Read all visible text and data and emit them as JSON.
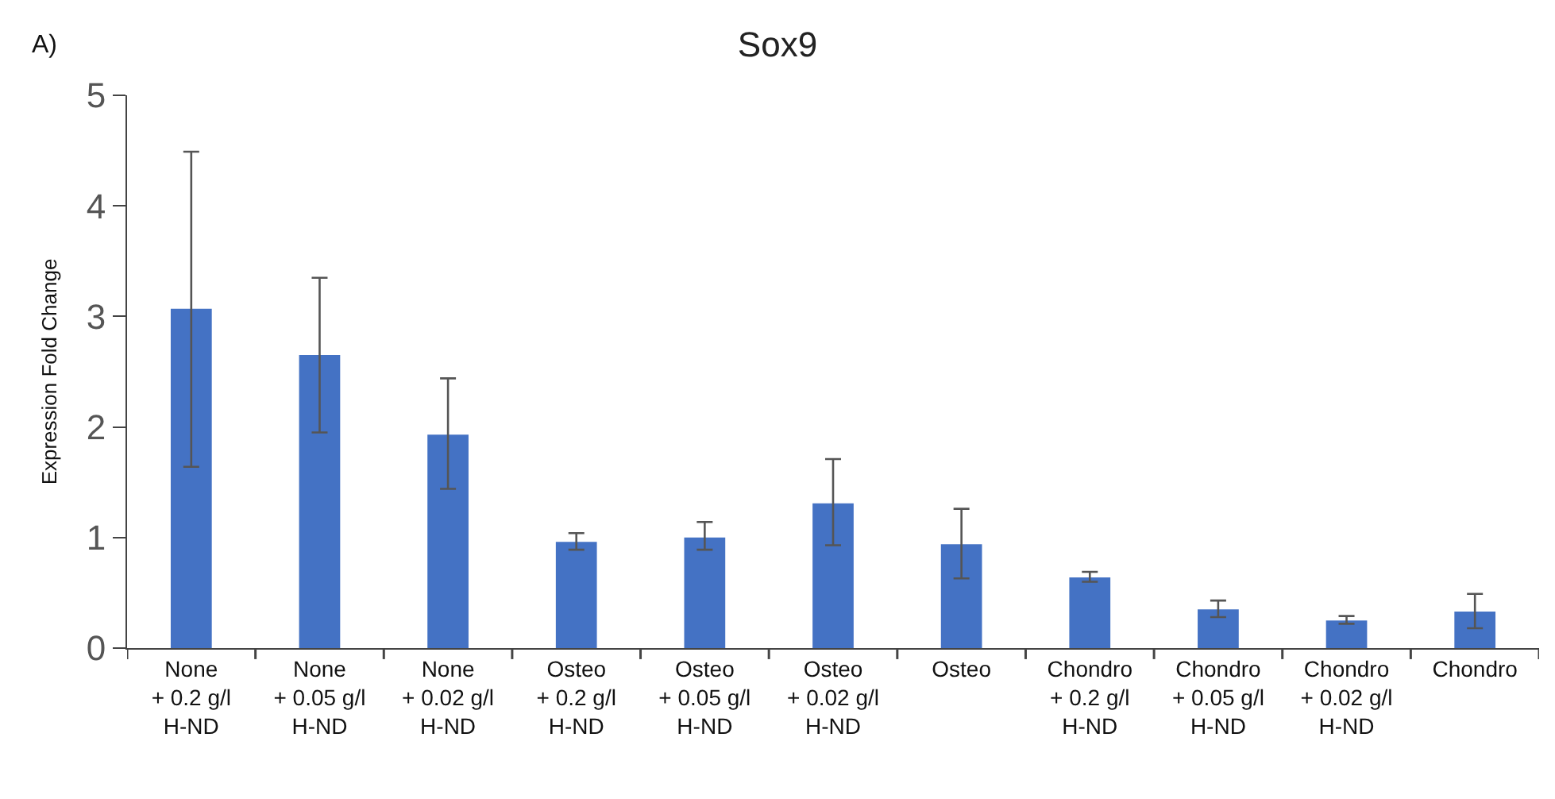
{
  "chart_data": {
    "type": "bar",
    "title": "Sox9",
    "ylabel": "Expression Fold Change",
    "annotations": [
      "A)"
    ],
    "categories": [
      "None\n+ 0.2 g/l\nH-ND",
      "None\n+ 0.05 g/l\nH-ND",
      "None\n+ 0.02 g/l\nH-ND",
      "Osteo\n+ 0.2 g/l\nH-ND",
      "Osteo\n+ 0.05 g/l\nH-ND",
      "Osteo\n+ 0.02 g/l\nH-ND",
      "Osteo",
      "Chondro\n+ 0.2 g/l\nH-ND",
      "Chondro\n+ 0.05 g/l\nH-ND",
      "Chondro\n+ 0.02 g/l\nH-ND",
      "Chondro"
    ],
    "values": [
      3.07,
      2.65,
      1.93,
      0.96,
      1.0,
      1.31,
      0.94,
      0.64,
      0.35,
      0.25,
      0.33
    ],
    "errors": [
      [
        1.64,
        4.49
      ],
      [
        1.95,
        3.35
      ],
      [
        1.44,
        2.44
      ],
      [
        0.89,
        1.04
      ],
      [
        0.89,
        1.14
      ],
      [
        0.93,
        1.71
      ],
      [
        0.63,
        1.26
      ],
      [
        0.6,
        0.69
      ],
      [
        0.28,
        0.43
      ],
      [
        0.22,
        0.29
      ],
      [
        0.18,
        0.49
      ]
    ],
    "color": "#4472c4",
    "ylim": [
      0,
      5
    ],
    "yticks": [
      0,
      1,
      2,
      3,
      4,
      5
    ]
  }
}
